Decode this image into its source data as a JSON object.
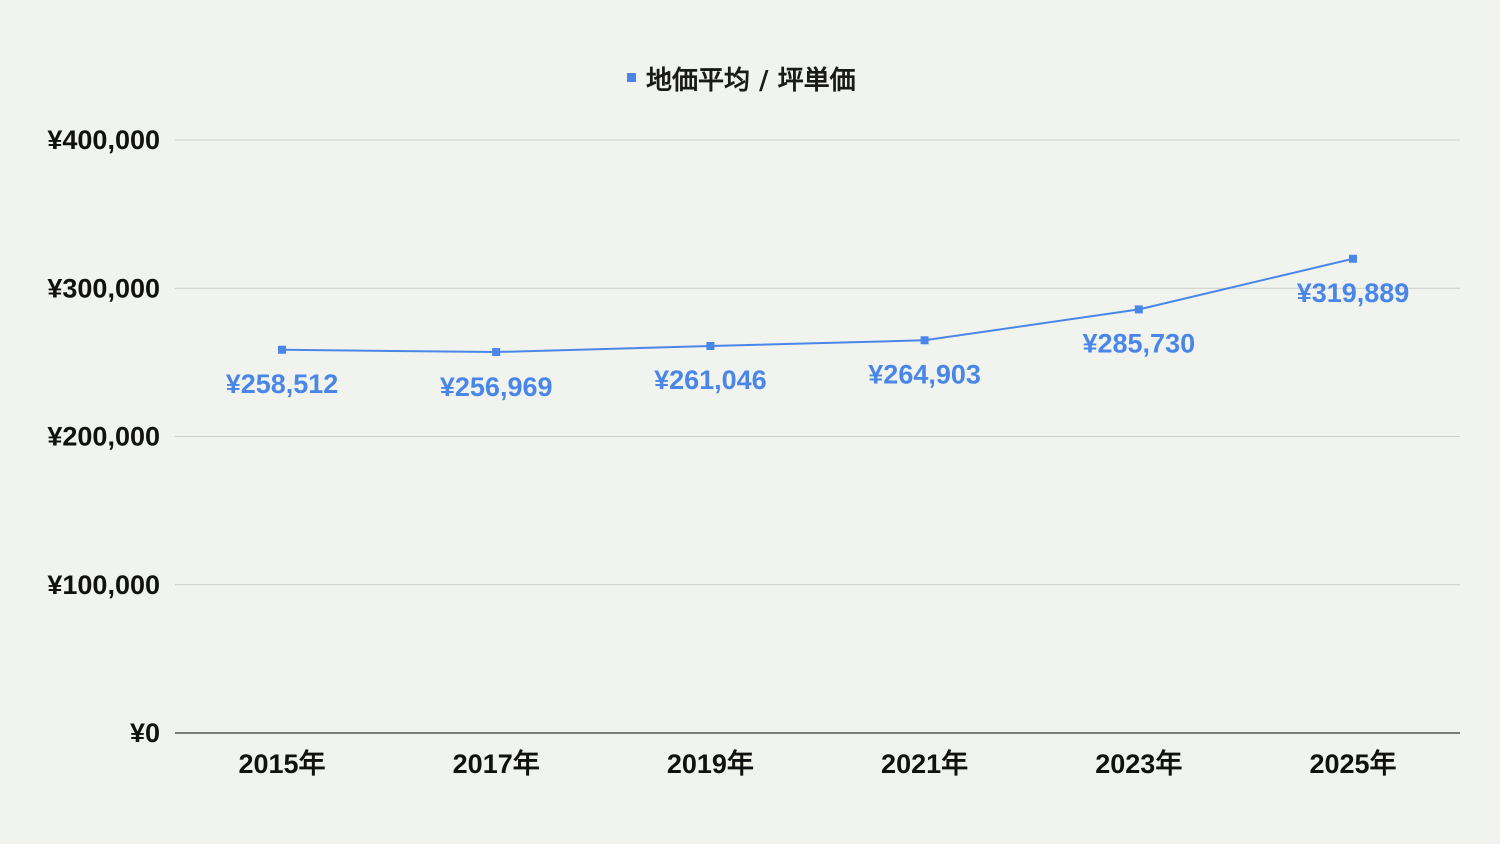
{
  "chart_data": {
    "type": "line",
    "categories": [
      "2015年",
      "2017年",
      "2019年",
      "2021年",
      "2023年",
      "2025年"
    ],
    "series": [
      {
        "name": "地価平均 / 坪単価",
        "values": [
          258512,
          256969,
          261046,
          264903,
          285730,
          319889
        ],
        "labels": [
          "¥258,512",
          "¥256,969",
          "¥261,046",
          "¥264,903",
          "¥285,730",
          "¥319,889"
        ],
        "color": "#4a86e8"
      }
    ],
    "ylim": [
      0,
      400000
    ],
    "yticks": [
      0,
      100000,
      200000,
      300000,
      400000
    ],
    "ytick_labels": [
      "¥0",
      "¥100,000",
      "¥200,000",
      "¥300,000",
      "¥400,000"
    ],
    "grid": true,
    "legend_position": "top-center",
    "background": "#f1f4ee",
    "gridline_color": "#cccccc",
    "axis_color": "#333333"
  }
}
